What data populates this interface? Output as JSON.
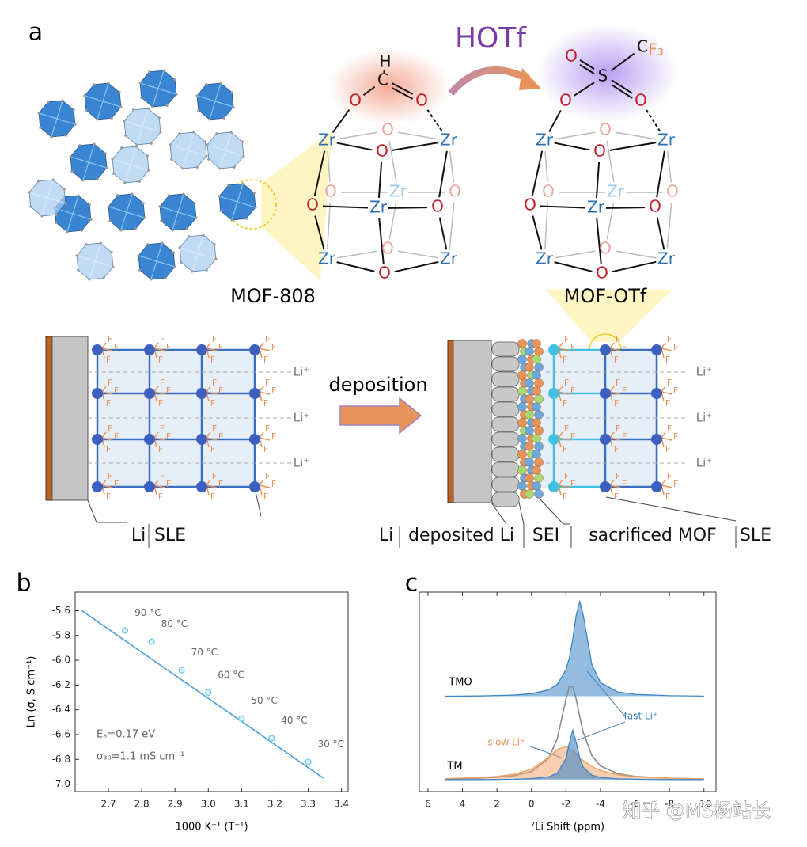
{
  "figure_a": {
    "label": "a",
    "reagent": "HOTf",
    "left_structure": "MOF-808",
    "right_structure": "MOF-OTf",
    "formate_atoms": [
      "H",
      "C",
      "O",
      "O"
    ],
    "triflate_atoms": [
      "O",
      "S",
      "C",
      "F₃",
      "O",
      "O"
    ],
    "core_atoms": [
      "Zr",
      "Zr",
      "O",
      "O",
      "O",
      "O",
      "Zr",
      "O",
      "Zr",
      "O",
      "Zr",
      "O",
      "Zr",
      "O"
    ],
    "fluorine": "F",
    "lithium_ion": "Li⁺",
    "process": "deposition",
    "left_layers": [
      "Li",
      "SLE"
    ],
    "right_layers": [
      "Li",
      "deposited Li",
      "SEI",
      "sacrificed MOF",
      "SLE"
    ]
  },
  "chart_data": [
    {
      "type": "scatter",
      "panel_label": "b",
      "xlabel": "1000 K⁻¹ (T⁻¹)",
      "ylabel": "Ln (σ, S cm⁻¹)",
      "x": [
        2.75,
        2.83,
        2.92,
        3.0,
        3.1,
        3.19,
        3.3
      ],
      "values": [
        -5.76,
        -5.85,
        -6.08,
        -6.26,
        -6.47,
        -6.63,
        -6.82
      ],
      "point_labels": [
        "90 °C",
        "80 °C",
        "70 °C",
        "60 °C",
        "50 °C",
        "40 °C",
        "30 °C"
      ],
      "color": "#6cc8ec",
      "fit": {
        "x": [
          2.62,
          3.345
        ],
        "values": [
          -5.6,
          -6.95
        ],
        "color": "#4a9fd8"
      },
      "annotations": [
        "Eₐ=0.17 eV",
        "σ₃₀=1.1 mS cm⁻¹"
      ],
      "xlim": [
        2.6,
        3.42
      ],
      "ylim": [
        -7.06,
        -5.45
      ],
      "xticks": [
        2.7,
        2.8,
        2.9,
        {
          "value": 3,
          "label": "3.0"
        },
        3.1,
        3.2,
        3.3,
        3.4
      ],
      "yticks": [
        -5.6,
        -5.8,
        {
          "value": -6,
          "label": "-6.0"
        },
        -6.2,
        -6.4,
        -6.6,
        -6.8,
        {
          "value": -7,
          "label": "-7.0"
        }
      ]
    },
    {
      "type": "line",
      "panel_label": "c",
      "xlabel": "⁷Li Shift (ppm)",
      "x": [
        5,
        3,
        2,
        1,
        0,
        -1,
        -1.5,
        -2,
        -2.2,
        -2.4,
        -2.6,
        -2.8,
        -3,
        -3.5,
        -4,
        -5,
        -6,
        -8,
        -10
      ],
      "series": [
        {
          "name": "TMO",
          "color": "#3d85c6",
          "values": [
            0.4,
            0.7,
            1.1,
            1.7,
            3.1,
            7.2,
            12.9,
            28.1,
            41.0,
            61.0,
            86.2,
            100,
            86.2,
            33.8,
            14.8,
            4.9,
            2.4,
            0.9,
            0.5
          ]
        },
        {
          "name": "TM",
          "color": "#8a8a8a",
          "values": [
            0.9,
            1.7,
            2.6,
            4.3,
            8.5,
            22.5,
            43.4,
            84.5,
            98.0,
            98.0,
            84.5,
            66.2,
            50.0,
            25.4,
            14.5,
            6.3,
            3.5,
            1.5,
            0.8
          ]
        },
        {
          "name": "slow Li⁺",
          "color": "#f0a060",
          "values": [
            1.2,
            2.3,
            3.5,
            5.9,
            11.1,
            23.7,
            32.0,
            34.8,
            33.2,
            30.5,
            27.1,
            23.7,
            20.4,
            13.9,
            9.7,
            5.2,
            3.2,
            1.5,
            0.9
          ]
        },
        {
          "name": "fast Li⁺",
          "color": "#3d85c6",
          "values": [
            0.1,
            0.2,
            0.3,
            0.5,
            1.1,
            3.1,
            6.8,
            22.5,
            39.2,
            52.0,
            39.2,
            22.5,
            13.2,
            4.8,
            2.4,
            0.9,
            0.5,
            0.2,
            0.1
          ]
        }
      ],
      "xlim": [
        6.5,
        -10.7
      ],
      "xticks": [
        6,
        4,
        2,
        0,
        -2,
        -4,
        -6,
        -8,
        -10
      ]
    }
  ],
  "watermark": "知乎 @MS杨站长"
}
